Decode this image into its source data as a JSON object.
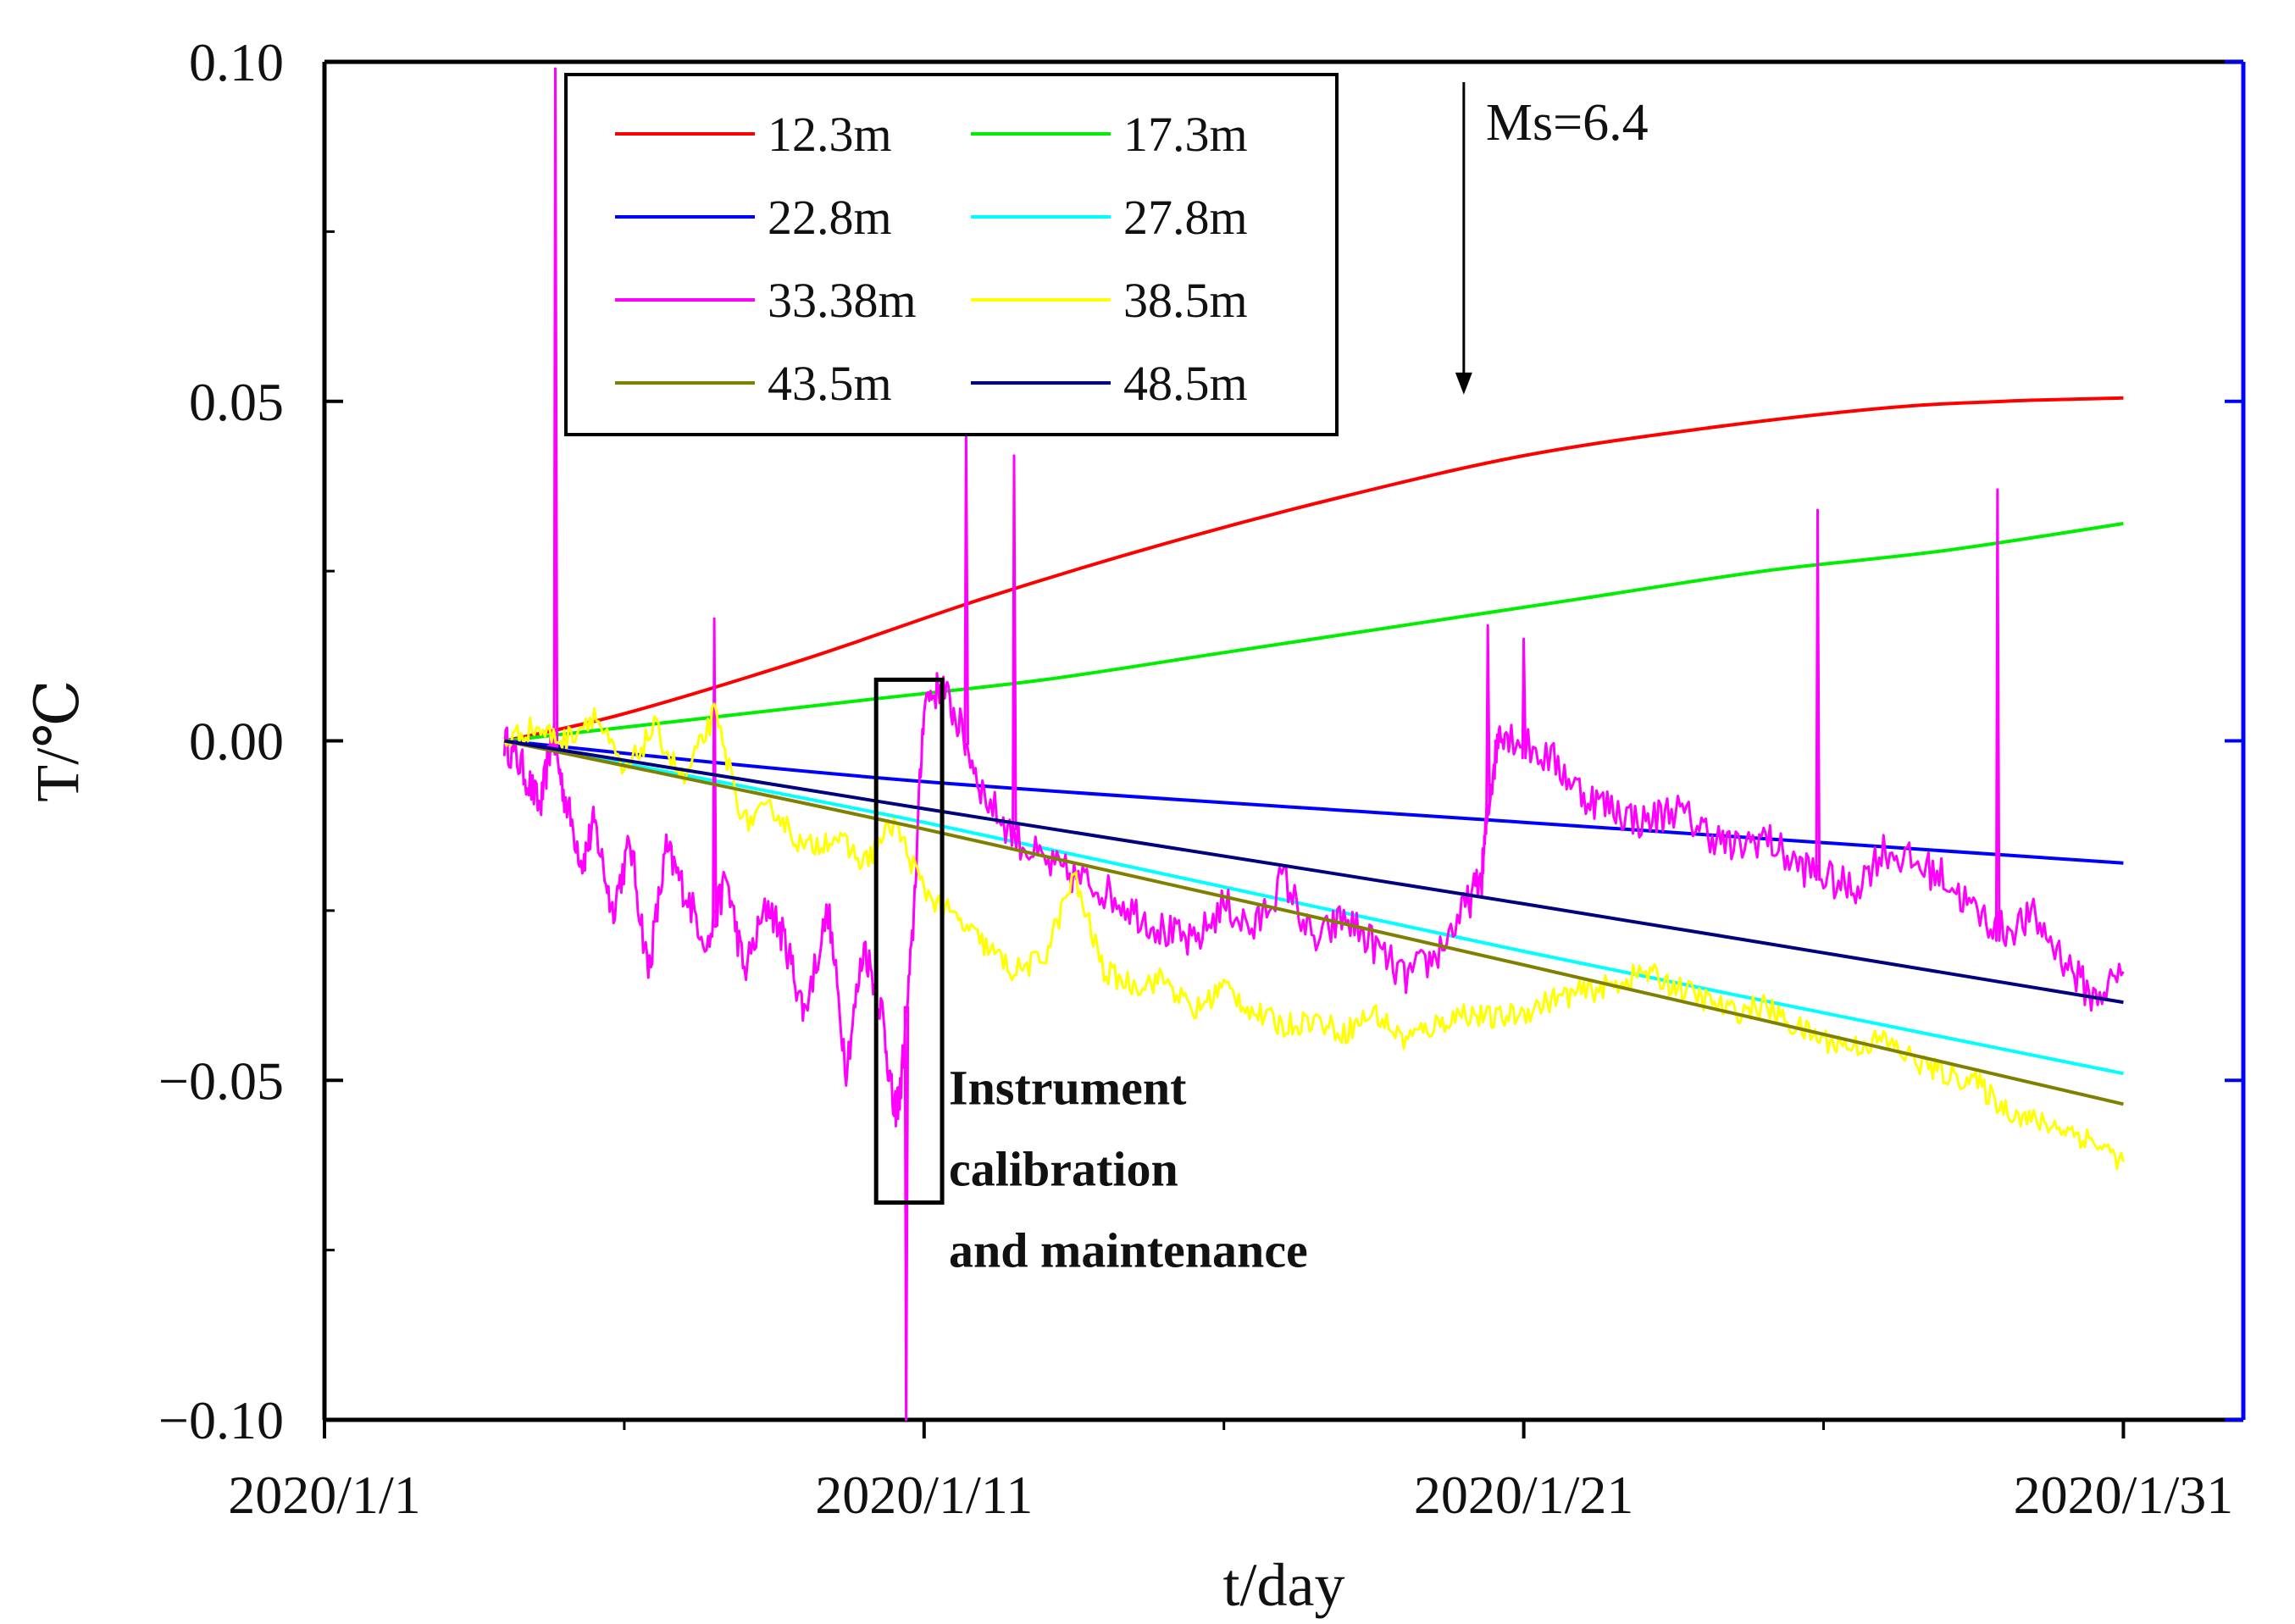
{
  "chart_data": {
    "type": "line",
    "title": "",
    "xlabel": "t/day",
    "ylabel": "T/℃",
    "xlim_days": [
      0,
      32
    ],
    "ylim": [
      -0.1,
      0.1
    ],
    "x_ticks": [
      {
        "day": 0,
        "label": "2020/1/1"
      },
      {
        "day": 10,
        "label": "2020/1/11"
      },
      {
        "day": 20,
        "label": "2020/1/21"
      },
      {
        "day": 30,
        "label": "2020/1/31"
      }
    ],
    "y_ticks": [
      {
        "value": 0.1,
        "label": "0.10"
      },
      {
        "value": 0.05,
        "label": "0.05"
      },
      {
        "value": 0.0,
        "label": "0.00"
      },
      {
        "value": -0.05,
        "label": "−0.05"
      },
      {
        "value": -0.1,
        "label": "−0.10"
      }
    ],
    "series": [
      {
        "name": "12.3m",
        "color": "#ff0000",
        "kind": "smooth",
        "x": [
          3,
          5,
          8,
          11,
          14,
          17,
          20,
          23,
          26,
          28,
          30
        ],
        "y": [
          0.0,
          0.004,
          0.012,
          0.021,
          0.029,
          0.036,
          0.042,
          0.046,
          0.049,
          0.05,
          0.0505
        ]
      },
      {
        "name": "17.3m",
        "color": "#00ee00",
        "kind": "smooth",
        "x": [
          3,
          6,
          9,
          12,
          15,
          18,
          21,
          24,
          27,
          30
        ],
        "y": [
          0.0,
          0.003,
          0.006,
          0.009,
          0.013,
          0.017,
          0.021,
          0.025,
          0.028,
          0.032
        ]
      },
      {
        "name": "22.8m",
        "color": "#0000ff",
        "kind": "smooth",
        "x": [
          3,
          10,
          20,
          30
        ],
        "y": [
          0.0,
          -0.006,
          -0.012,
          -0.018
        ]
      },
      {
        "name": "27.8m",
        "color": "#00ffff",
        "kind": "smooth",
        "x": [
          3,
          10,
          20,
          30
        ],
        "y": [
          0.0,
          -0.012,
          -0.031,
          -0.049
        ]
      },
      {
        "name": "33.38m",
        "color": "#ff00ff",
        "kind": "noisy",
        "x": [
          3,
          3.3,
          3.6,
          3.8,
          4.0,
          4.3,
          4.5,
          4.8,
          5.1,
          5.4,
          5.7,
          6.0,
          6.4,
          6.7,
          7.0,
          7.4,
          7.7,
          8.0,
          8.4,
          8.7,
          9.0,
          9.3,
          9.5,
          9.6,
          9.8,
          10.0,
          10.3,
          10.6,
          11.0,
          11.5,
          12.0,
          12.5,
          13.0,
          13.5,
          14.0,
          14.5,
          15.0,
          15.5,
          16.0,
          16.5,
          17.0,
          17.5,
          18.0,
          18.5,
          19.0,
          19.3,
          19.4,
          19.6,
          19.9,
          20.5,
          21.0,
          21.5,
          22.0,
          22.5,
          23.0,
          23.5,
          24.0,
          24.5,
          25.0,
          25.5,
          26.0,
          26.5,
          27.0,
          27.5,
          28.0,
          28.5,
          29.0,
          29.5,
          30.0
        ],
        "y": [
          0.0,
          -0.004,
          -0.01,
          0.001,
          -0.008,
          -0.018,
          -0.012,
          -0.025,
          -0.015,
          -0.034,
          -0.016,
          -0.022,
          -0.03,
          -0.02,
          -0.034,
          -0.024,
          -0.03,
          -0.04,
          -0.025,
          -0.048,
          -0.03,
          -0.04,
          -0.055,
          -0.052,
          -0.03,
          0.006,
          0.008,
          0.002,
          -0.008,
          -0.014,
          -0.018,
          -0.02,
          -0.022,
          -0.025,
          -0.028,
          -0.03,
          -0.024,
          -0.028,
          -0.02,
          -0.03,
          -0.026,
          -0.03,
          -0.035,
          -0.032,
          -0.025,
          -0.02,
          -0.01,
          0.002,
          0.0,
          -0.003,
          -0.008,
          -0.01,
          -0.012,
          -0.01,
          -0.013,
          -0.016,
          -0.014,
          -0.018,
          -0.02,
          -0.022,
          -0.016,
          -0.018,
          -0.02,
          -0.025,
          -0.028,
          -0.026,
          -0.032,
          -0.038,
          -0.034
        ],
        "spikes": [
          {
            "x": 3.85,
            "y": 0.099
          },
          {
            "x": 6.5,
            "y": 0.018
          },
          {
            "x": 9.7,
            "y": -0.1
          },
          {
            "x": 10.7,
            "y": 0.045
          },
          {
            "x": 11.5,
            "y": 0.042
          },
          {
            "x": 19.4,
            "y": 0.017
          },
          {
            "x": 20.0,
            "y": 0.015
          },
          {
            "x": 24.9,
            "y": 0.034
          },
          {
            "x": 27.9,
            "y": 0.037
          }
        ]
      },
      {
        "name": "38.5m",
        "color": "#ffff00",
        "kind": "noisy",
        "x": [
          3,
          3.5,
          4.0,
          4.5,
          5.0,
          5.5,
          6.0,
          6.5,
          7.0,
          7.5,
          8.0,
          8.5,
          9.0,
          9.5,
          10.0,
          10.5,
          11.0,
          11.5,
          12.0,
          12.5,
          13.0,
          13.5,
          14.0,
          14.5,
          15.0,
          15.5,
          16.0,
          16.5,
          17.0,
          17.5,
          18.0,
          18.5,
          19.0,
          19.5,
          20.0,
          20.5,
          21.0,
          21.5,
          22.0,
          22.5,
          23.0,
          23.5,
          24.0,
          24.5,
          25.0,
          25.5,
          26.0,
          26.5,
          27.0,
          27.5,
          28.0,
          28.5,
          29.0,
          29.5,
          30.0
        ],
        "y": [
          0.0,
          0.002,
          0.0,
          0.004,
          -0.005,
          0.002,
          -0.006,
          0.004,
          -0.012,
          -0.01,
          -0.016,
          -0.014,
          -0.018,
          -0.012,
          -0.022,
          -0.026,
          -0.03,
          -0.034,
          -0.032,
          -0.02,
          -0.034,
          -0.036,
          -0.035,
          -0.04,
          -0.036,
          -0.04,
          -0.042,
          -0.041,
          -0.043,
          -0.04,
          -0.044,
          -0.042,
          -0.04,
          -0.041,
          -0.04,
          -0.038,
          -0.037,
          -0.036,
          -0.034,
          -0.036,
          -0.038,
          -0.04,
          -0.039,
          -0.042,
          -0.044,
          -0.045,
          -0.044,
          -0.047,
          -0.049,
          -0.05,
          -0.054,
          -0.056,
          -0.057,
          -0.059,
          -0.062
        ]
      },
      {
        "name": "43.5m",
        "color": "#808000",
        "kind": "smooth",
        "x": [
          3,
          10,
          20,
          30
        ],
        "y": [
          0.0,
          -0.013,
          -0.033,
          -0.0535
        ]
      },
      {
        "name": "48.5m",
        "color": "#000080",
        "kind": "smooth",
        "x": [
          3,
          10,
          20,
          30
        ],
        "y": [
          0.0,
          -0.01,
          -0.024,
          -0.0385
        ]
      }
    ],
    "legend_position": "top-left",
    "annotations": {
      "event_label": "Ms=6.4",
      "event_day": 19.0,
      "event_arrow_top": 0.097,
      "event_arrow_bottom": 0.051,
      "box_x_range": [
        9.2,
        10.3
      ],
      "box_y_range": [
        -0.068,
        0.009
      ],
      "box_lines": [
        "Instrument",
        "calibration",
        "and maintenance"
      ]
    }
  }
}
